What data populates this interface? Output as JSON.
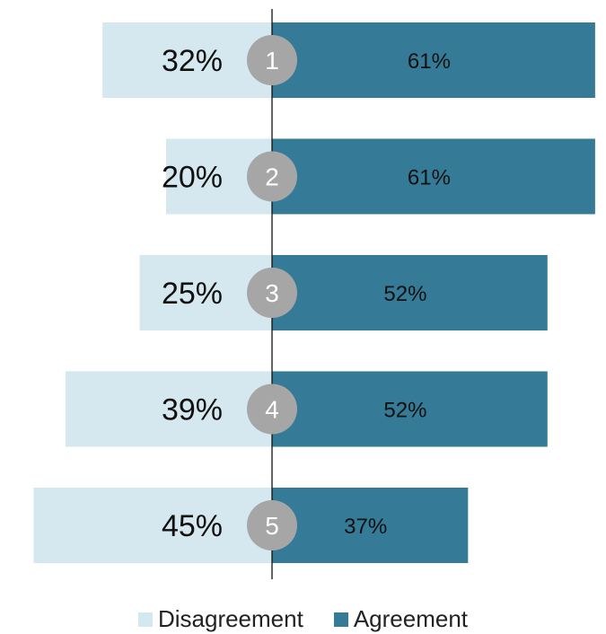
{
  "chart_data": {
    "type": "bar",
    "orientation": "horizontal-diverging",
    "categories": [
      "1",
      "2",
      "3",
      "4",
      "5"
    ],
    "series": [
      {
        "name": "Disagreement",
        "values": [
          32,
          20,
          25,
          39,
          45
        ],
        "color": "#d5e8f0"
      },
      {
        "name": "Agreement",
        "values": [
          61,
          61,
          52,
          52,
          37
        ],
        "color": "#357a96"
      }
    ],
    "value_labels": {
      "Disagreement": [
        "32%",
        "20%",
        "25%",
        "39%",
        "45%"
      ],
      "Agreement": [
        "61%",
        "61%",
        "52%",
        "52%",
        "37%"
      ]
    },
    "legend": "bottom-center",
    "grid": false
  }
}
